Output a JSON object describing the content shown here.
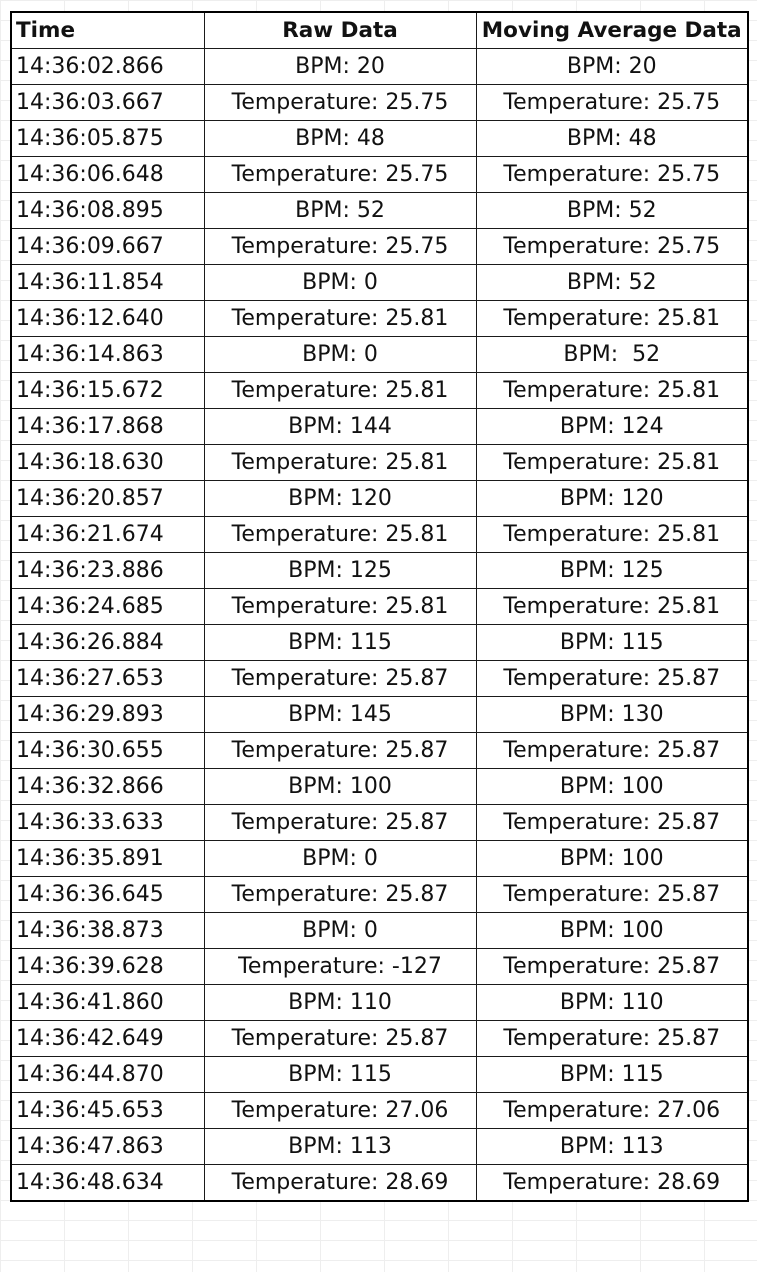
{
  "table": {
    "headers": {
      "time": "Time",
      "raw": "Raw Data",
      "avg": "Moving Average Data"
    },
    "rows": [
      {
        "time": "14:36:02.866",
        "raw": "BPM: 20",
        "avg": "BPM: 20"
      },
      {
        "time": "14:36:03.667",
        "raw": "Temperature: 25.75",
        "avg": "Temperature: 25.75"
      },
      {
        "time": "14:36:05.875",
        "raw": "BPM: 48",
        "avg": "BPM: 48"
      },
      {
        "time": "14:36:06.648",
        "raw": "Temperature: 25.75",
        "avg": "Temperature: 25.75"
      },
      {
        "time": "14:36:08.895",
        "raw": "BPM: 52",
        "avg": "BPM: 52"
      },
      {
        "time": "14:36:09.667",
        "raw": "Temperature: 25.75",
        "avg": "Temperature: 25.75"
      },
      {
        "time": "14:36:11.854",
        "raw": "BPM: 0",
        "avg": "BPM: 52"
      },
      {
        "time": "14:36:12.640",
        "raw": "Temperature: 25.81",
        "avg": "Temperature: 25.81"
      },
      {
        "time": "14:36:14.863",
        "raw": "BPM: 0",
        "avg": "BPM:  52"
      },
      {
        "time": "14:36:15.672",
        "raw": "Temperature: 25.81",
        "avg": "Temperature: 25.81"
      },
      {
        "time": "14:36:17.868",
        "raw": "BPM: 144",
        "avg": "BPM: 124"
      },
      {
        "time": "14:36:18.630",
        "raw": "Temperature: 25.81",
        "avg": "Temperature: 25.81"
      },
      {
        "time": "14:36:20.857",
        "raw": "BPM: 120",
        "avg": "BPM: 120"
      },
      {
        "time": "14:36:21.674",
        "raw": "Temperature: 25.81",
        "avg": "Temperature: 25.81"
      },
      {
        "time": "14:36:23.886",
        "raw": "BPM: 125",
        "avg": "BPM: 125"
      },
      {
        "time": "14:36:24.685",
        "raw": "Temperature: 25.81",
        "avg": "Temperature: 25.81"
      },
      {
        "time": "14:36:26.884",
        "raw": "BPM: 115",
        "avg": "BPM: 115"
      },
      {
        "time": "14:36:27.653",
        "raw": "Temperature: 25.87",
        "avg": "Temperature: 25.87"
      },
      {
        "time": "14:36:29.893",
        "raw": "BPM: 145",
        "avg": "BPM: 130"
      },
      {
        "time": "14:36:30.655",
        "raw": "Temperature: 25.87",
        "avg": "Temperature: 25.87"
      },
      {
        "time": "14:36:32.866",
        "raw": "BPM: 100",
        "avg": "BPM: 100"
      },
      {
        "time": "14:36:33.633",
        "raw": "Temperature: 25.87",
        "avg": "Temperature: 25.87"
      },
      {
        "time": "14:36:35.891",
        "raw": "BPM: 0",
        "avg": "BPM: 100"
      },
      {
        "time": "14:36:36.645",
        "raw": "Temperature: 25.87",
        "avg": "Temperature: 25.87"
      },
      {
        "time": "14:36:38.873",
        "raw": "BPM: 0",
        "avg": "BPM: 100"
      },
      {
        "time": "14:36:39.628",
        "raw": "Temperature: -127",
        "avg": "Temperature: 25.87"
      },
      {
        "time": "14:36:41.860",
        "raw": "BPM: 110",
        "avg": "BPM: 110"
      },
      {
        "time": "14:36:42.649",
        "raw": "Temperature: 25.87",
        "avg": "Temperature: 25.87"
      },
      {
        "time": "14:36:44.870",
        "raw": "BPM: 115",
        "avg": "BPM: 115"
      },
      {
        "time": "14:36:45.653",
        "raw": "Temperature: 27.06",
        "avg": "Temperature: 27.06"
      },
      {
        "time": "14:36:47.863",
        "raw": "BPM: 113",
        "avg": "BPM: 113"
      },
      {
        "time": "14:36:48.634",
        "raw": "Temperature: 28.69",
        "avg": "Temperature: 28.69"
      }
    ]
  }
}
